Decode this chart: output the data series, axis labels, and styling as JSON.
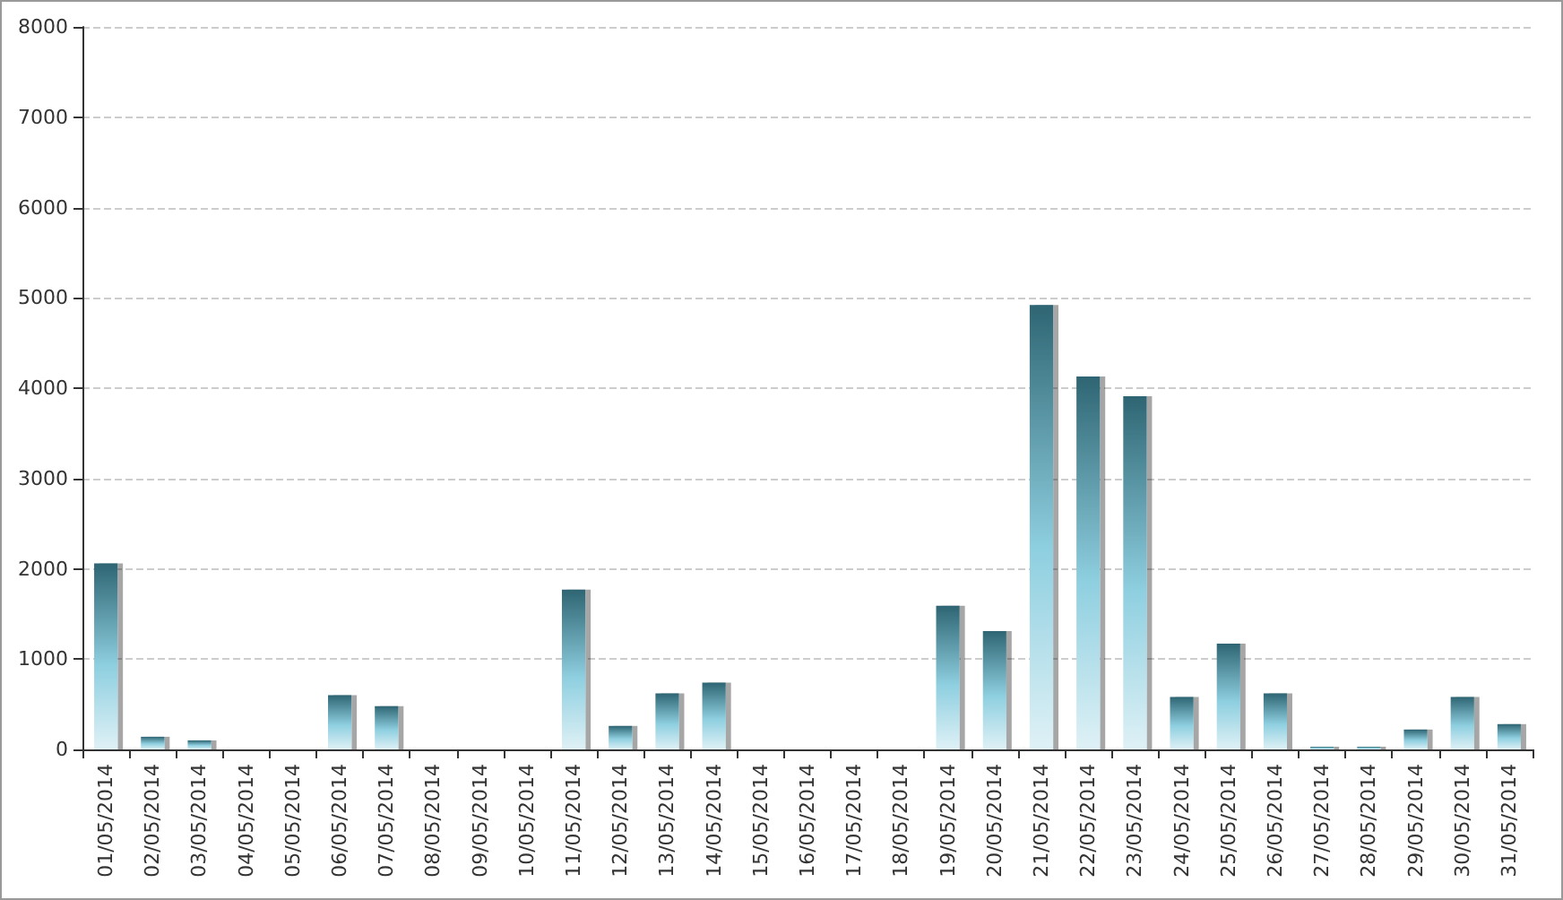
{
  "chart_data": {
    "type": "bar",
    "categories": [
      "01/05/2014",
      "02/05/2014",
      "03/05/2014",
      "04/05/2014",
      "05/05/2014",
      "06/05/2014",
      "07/05/2014",
      "08/05/2014",
      "09/05/2014",
      "10/05/2014",
      "11/05/2014",
      "12/05/2014",
      "13/05/2014",
      "14/05/2014",
      "15/05/2014",
      "16/05/2014",
      "17/05/2014",
      "18/05/2014",
      "19/05/2014",
      "20/05/2014",
      "21/05/2014",
      "22/05/2014",
      "23/05/2014",
      "24/05/2014",
      "25/05/2014",
      "26/05/2014",
      "27/05/2014",
      "28/05/2014",
      "29/05/2014",
      "30/05/2014",
      "31/05/2014"
    ],
    "values": [
      2060,
      140,
      100,
      0,
      0,
      600,
      480,
      0,
      0,
      0,
      1770,
      260,
      620,
      740,
      0,
      0,
      0,
      0,
      1590,
      1310,
      4920,
      4130,
      3910,
      580,
      1170,
      620,
      30,
      30,
      220,
      580,
      280
    ],
    "color": "#2e6573",
    "ylim": [
      0,
      8000
    ],
    "yticks": [
      0,
      1000,
      2000,
      3000,
      4000,
      5000,
      6000,
      7000,
      8000
    ],
    "grid": "y"
  }
}
